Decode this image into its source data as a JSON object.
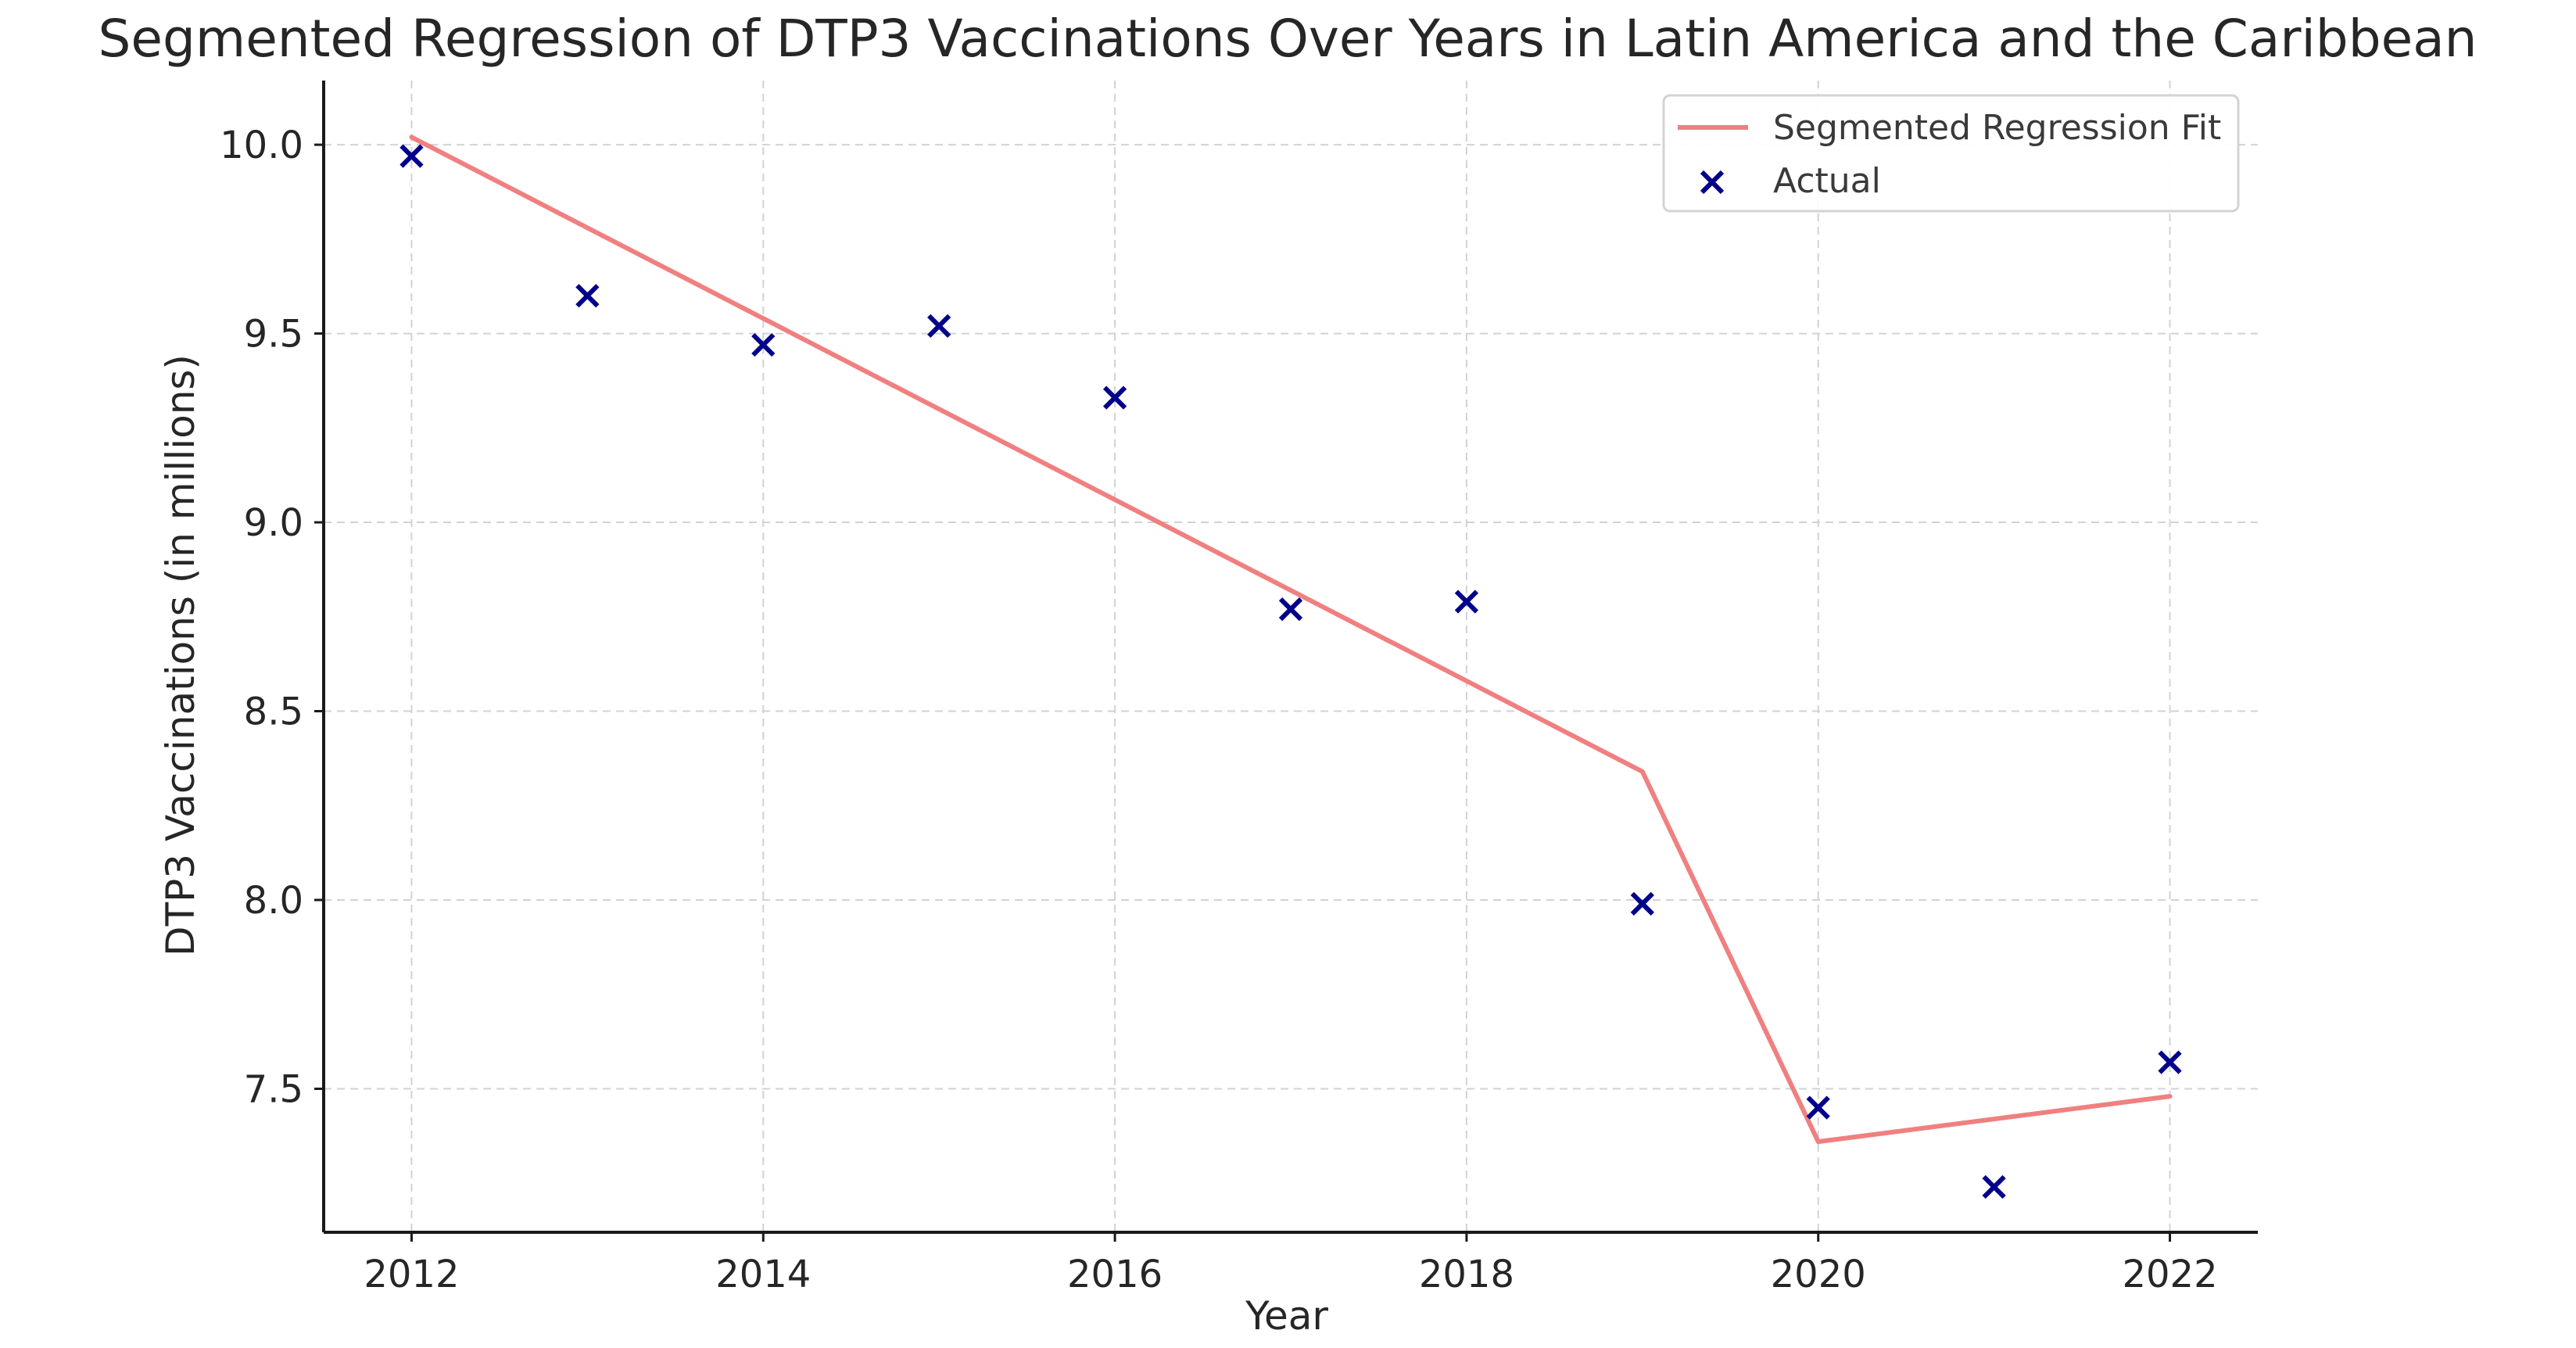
{
  "chart_data": {
    "type": "line",
    "title": "Segmented Regression of DTP3 Vaccinations Over Years in Latin America and the Caribbean",
    "xlabel": "Year",
    "ylabel": "DTP3 Vaccinations (in millions)",
    "x": [
      2012,
      2013,
      2014,
      2015,
      2016,
      2017,
      2018,
      2019,
      2020,
      2021,
      2022
    ],
    "xlim": [
      2011.5,
      2022.5
    ],
    "ylim": [
      7.12,
      10.17
    ],
    "x_ticks": [
      2012,
      2014,
      2016,
      2018,
      2020,
      2022
    ],
    "x_tick_labels": [
      "2012",
      "2014",
      "2016",
      "2018",
      "2020",
      "2022"
    ],
    "y_ticks": [
      7.5,
      8.0,
      8.5,
      9.0,
      9.5,
      10.0
    ],
    "y_tick_labels": [
      "7.5",
      "8.0",
      "8.5",
      "9.0",
      "9.5",
      "10.0"
    ],
    "grid": true,
    "legend_position": "top-right",
    "series": [
      {
        "name": "Segmented Regression Fit",
        "kind": "line",
        "color": "#f08080",
        "x": [
          2012,
          2019,
          2020,
          2022
        ],
        "values": [
          10.02,
          8.34,
          7.36,
          7.48
        ]
      },
      {
        "name": "Actual",
        "kind": "scatter",
        "marker": "x",
        "color": "#00008b",
        "x": [
          2012,
          2013,
          2014,
          2015,
          2016,
          2017,
          2018,
          2019,
          2020,
          2021,
          2022
        ],
        "values": [
          9.97,
          9.6,
          9.47,
          9.52,
          9.33,
          8.77,
          8.79,
          7.99,
          7.45,
          7.24,
          7.57
        ]
      }
    ]
  }
}
